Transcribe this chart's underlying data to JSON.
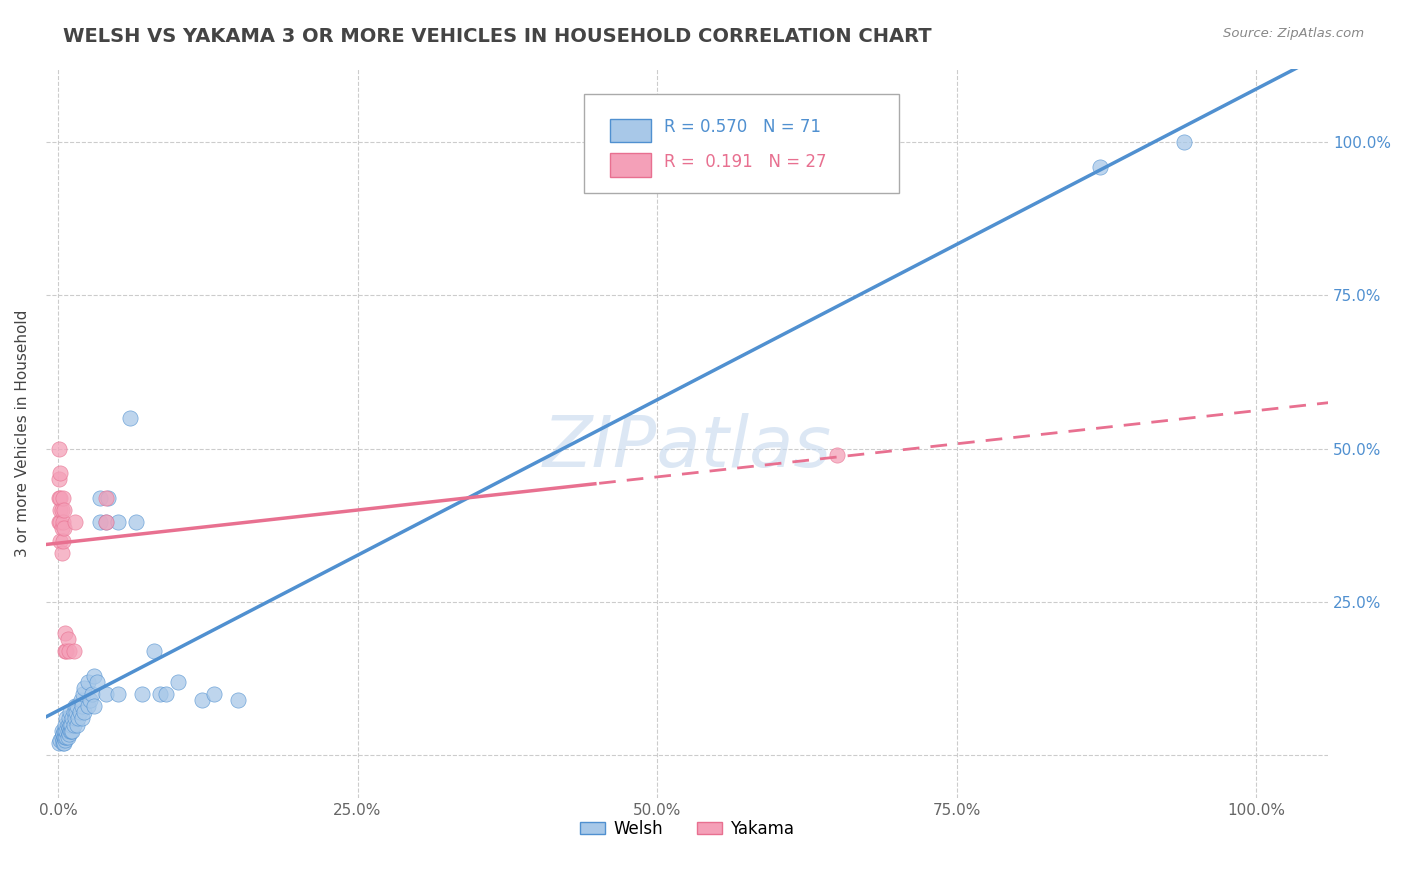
{
  "title": "WELSH VS YAKAMA 3 OR MORE VEHICLES IN HOUSEHOLD CORRELATION CHART",
  "source": "Source: ZipAtlas.com",
  "ylabel": "3 or more Vehicles in Household",
  "r_welsh": 0.57,
  "n_welsh": 71,
  "r_yakama": 0.191,
  "n_yakama": 27,
  "welsh_color": "#a8c8e8",
  "yakama_color": "#f4a0b8",
  "welsh_line_color": "#5090d0",
  "yakama_line_color": "#e87090",
  "background_color": "#ffffff",
  "welsh_scatter": [
    [
      0.001,
      0.02
    ],
    [
      0.002,
      0.025
    ],
    [
      0.003,
      0.03
    ],
    [
      0.003,
      0.04
    ],
    [
      0.004,
      0.02
    ],
    [
      0.004,
      0.025
    ],
    [
      0.004,
      0.035
    ],
    [
      0.005,
      0.02
    ],
    [
      0.005,
      0.03
    ],
    [
      0.005,
      0.04
    ],
    [
      0.006,
      0.025
    ],
    [
      0.006,
      0.03
    ],
    [
      0.006,
      0.04
    ],
    [
      0.006,
      0.05
    ],
    [
      0.007,
      0.03
    ],
    [
      0.007,
      0.04
    ],
    [
      0.007,
      0.06
    ],
    [
      0.008,
      0.03
    ],
    [
      0.008,
      0.04
    ],
    [
      0.008,
      0.05
    ],
    [
      0.009,
      0.035
    ],
    [
      0.009,
      0.045
    ],
    [
      0.009,
      0.06
    ],
    [
      0.01,
      0.04
    ],
    [
      0.01,
      0.05
    ],
    [
      0.01,
      0.07
    ],
    [
      0.011,
      0.04
    ],
    [
      0.011,
      0.05
    ],
    [
      0.012,
      0.04
    ],
    [
      0.012,
      0.06
    ],
    [
      0.013,
      0.05
    ],
    [
      0.013,
      0.07
    ],
    [
      0.014,
      0.06
    ],
    [
      0.014,
      0.08
    ],
    [
      0.015,
      0.07
    ],
    [
      0.016,
      0.05
    ],
    [
      0.016,
      0.08
    ],
    [
      0.017,
      0.06
    ],
    [
      0.018,
      0.07
    ],
    [
      0.019,
      0.09
    ],
    [
      0.02,
      0.06
    ],
    [
      0.02,
      0.08
    ],
    [
      0.021,
      0.1
    ],
    [
      0.022,
      0.07
    ],
    [
      0.022,
      0.11
    ],
    [
      0.025,
      0.08
    ],
    [
      0.025,
      0.12
    ],
    [
      0.027,
      0.09
    ],
    [
      0.028,
      0.1
    ],
    [
      0.03,
      0.08
    ],
    [
      0.03,
      0.13
    ],
    [
      0.033,
      0.12
    ],
    [
      0.035,
      0.38
    ],
    [
      0.035,
      0.42
    ],
    [
      0.04,
      0.1
    ],
    [
      0.04,
      0.38
    ],
    [
      0.042,
      0.42
    ],
    [
      0.05,
      0.1
    ],
    [
      0.05,
      0.38
    ],
    [
      0.06,
      0.55
    ],
    [
      0.065,
      0.38
    ],
    [
      0.07,
      0.1
    ],
    [
      0.08,
      0.17
    ],
    [
      0.085,
      0.1
    ],
    [
      0.09,
      0.1
    ],
    [
      0.1,
      0.12
    ],
    [
      0.12,
      0.09
    ],
    [
      0.13,
      0.1
    ],
    [
      0.15,
      0.09
    ],
    [
      0.87,
      0.96
    ],
    [
      0.94,
      1.0
    ]
  ],
  "yakama_scatter": [
    [
      0.001,
      0.38
    ],
    [
      0.001,
      0.42
    ],
    [
      0.001,
      0.45
    ],
    [
      0.001,
      0.5
    ],
    [
      0.002,
      0.35
    ],
    [
      0.002,
      0.38
    ],
    [
      0.002,
      0.4
    ],
    [
      0.002,
      0.42
    ],
    [
      0.002,
      0.46
    ],
    [
      0.003,
      0.33
    ],
    [
      0.003,
      0.37
    ],
    [
      0.003,
      0.4
    ],
    [
      0.004,
      0.35
    ],
    [
      0.004,
      0.38
    ],
    [
      0.004,
      0.42
    ],
    [
      0.005,
      0.37
    ],
    [
      0.005,
      0.4
    ],
    [
      0.006,
      0.17
    ],
    [
      0.006,
      0.2
    ],
    [
      0.007,
      0.17
    ],
    [
      0.008,
      0.19
    ],
    [
      0.009,
      0.17
    ],
    [
      0.013,
      0.17
    ],
    [
      0.014,
      0.38
    ],
    [
      0.04,
      0.38
    ],
    [
      0.04,
      0.42
    ],
    [
      0.65,
      0.49
    ]
  ],
  "xlim": [
    -0.01,
    1.06
  ],
  "ylim": [
    -0.07,
    1.12
  ],
  "xticks": [
    0.0,
    0.25,
    0.5,
    0.75,
    1.0
  ],
  "xtick_labels": [
    "0.0%",
    "25.0%",
    "50.0%",
    "75.0%",
    "100.0%"
  ],
  "yticks": [
    0.0,
    0.25,
    0.5,
    0.75,
    1.0
  ],
  "ytick_labels_right": [
    "",
    "25.0%",
    "50.0%",
    "75.0%",
    "100.0%"
  ]
}
